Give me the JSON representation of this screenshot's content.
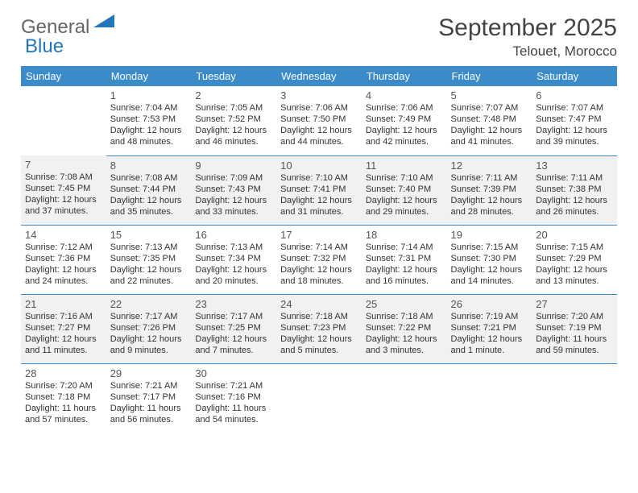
{
  "logo": {
    "text1": "General",
    "text2": "Blue",
    "triangle_color": "#2176bc"
  },
  "title": "September 2025",
  "location": "Telouet, Morocco",
  "header_bg": "#3b8bc9",
  "weekdays": [
    "Sunday",
    "Monday",
    "Tuesday",
    "Wednesday",
    "Thursday",
    "Friday",
    "Saturday"
  ],
  "weeks": [
    [
      null,
      {
        "n": "1",
        "sr": "7:04 AM",
        "ss": "7:53 PM",
        "dl": "12 hours and 48 minutes."
      },
      {
        "n": "2",
        "sr": "7:05 AM",
        "ss": "7:52 PM",
        "dl": "12 hours and 46 minutes."
      },
      {
        "n": "3",
        "sr": "7:06 AM",
        "ss": "7:50 PM",
        "dl": "12 hours and 44 minutes."
      },
      {
        "n": "4",
        "sr": "7:06 AM",
        "ss": "7:49 PM",
        "dl": "12 hours and 42 minutes."
      },
      {
        "n": "5",
        "sr": "7:07 AM",
        "ss": "7:48 PM",
        "dl": "12 hours and 41 minutes."
      },
      {
        "n": "6",
        "sr": "7:07 AM",
        "ss": "7:47 PM",
        "dl": "12 hours and 39 minutes."
      }
    ],
    [
      {
        "n": "7",
        "sr": "7:08 AM",
        "ss": "7:45 PM",
        "dl": "12 hours and 37 minutes."
      },
      {
        "n": "8",
        "sr": "7:08 AM",
        "ss": "7:44 PM",
        "dl": "12 hours and 35 minutes."
      },
      {
        "n": "9",
        "sr": "7:09 AM",
        "ss": "7:43 PM",
        "dl": "12 hours and 33 minutes."
      },
      {
        "n": "10",
        "sr": "7:10 AM",
        "ss": "7:41 PM",
        "dl": "12 hours and 31 minutes."
      },
      {
        "n": "11",
        "sr": "7:10 AM",
        "ss": "7:40 PM",
        "dl": "12 hours and 29 minutes."
      },
      {
        "n": "12",
        "sr": "7:11 AM",
        "ss": "7:39 PM",
        "dl": "12 hours and 28 minutes."
      },
      {
        "n": "13",
        "sr": "7:11 AM",
        "ss": "7:38 PM",
        "dl": "12 hours and 26 minutes."
      }
    ],
    [
      {
        "n": "14",
        "sr": "7:12 AM",
        "ss": "7:36 PM",
        "dl": "12 hours and 24 minutes."
      },
      {
        "n": "15",
        "sr": "7:13 AM",
        "ss": "7:35 PM",
        "dl": "12 hours and 22 minutes."
      },
      {
        "n": "16",
        "sr": "7:13 AM",
        "ss": "7:34 PM",
        "dl": "12 hours and 20 minutes."
      },
      {
        "n": "17",
        "sr": "7:14 AM",
        "ss": "7:32 PM",
        "dl": "12 hours and 18 minutes."
      },
      {
        "n": "18",
        "sr": "7:14 AM",
        "ss": "7:31 PM",
        "dl": "12 hours and 16 minutes."
      },
      {
        "n": "19",
        "sr": "7:15 AM",
        "ss": "7:30 PM",
        "dl": "12 hours and 14 minutes."
      },
      {
        "n": "20",
        "sr": "7:15 AM",
        "ss": "7:29 PM",
        "dl": "12 hours and 13 minutes."
      }
    ],
    [
      {
        "n": "21",
        "sr": "7:16 AM",
        "ss": "7:27 PM",
        "dl": "12 hours and 11 minutes."
      },
      {
        "n": "22",
        "sr": "7:17 AM",
        "ss": "7:26 PM",
        "dl": "12 hours and 9 minutes."
      },
      {
        "n": "23",
        "sr": "7:17 AM",
        "ss": "7:25 PM",
        "dl": "12 hours and 7 minutes."
      },
      {
        "n": "24",
        "sr": "7:18 AM",
        "ss": "7:23 PM",
        "dl": "12 hours and 5 minutes."
      },
      {
        "n": "25",
        "sr": "7:18 AM",
        "ss": "7:22 PM",
        "dl": "12 hours and 3 minutes."
      },
      {
        "n": "26",
        "sr": "7:19 AM",
        "ss": "7:21 PM",
        "dl": "12 hours and 1 minute."
      },
      {
        "n": "27",
        "sr": "7:20 AM",
        "ss": "7:19 PM",
        "dl": "11 hours and 59 minutes."
      }
    ],
    [
      {
        "n": "28",
        "sr": "7:20 AM",
        "ss": "7:18 PM",
        "dl": "11 hours and 57 minutes."
      },
      {
        "n": "29",
        "sr": "7:21 AM",
        "ss": "7:17 PM",
        "dl": "11 hours and 56 minutes."
      },
      {
        "n": "30",
        "sr": "7:21 AM",
        "ss": "7:16 PM",
        "dl": "11 hours and 54 minutes."
      },
      null,
      null,
      null,
      null
    ]
  ]
}
